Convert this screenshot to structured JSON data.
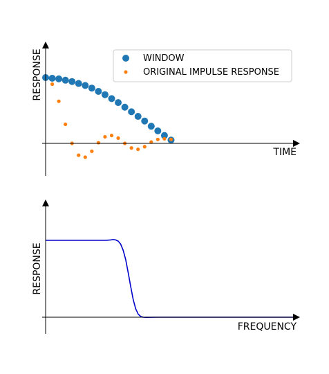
{
  "chart_data": [
    {
      "type": "scatter",
      "xlabel": "TIME",
      "ylabel": "RESPONSE",
      "xlim": [
        -0.5,
        38
      ],
      "ylim": [
        -0.55,
        1.7
      ],
      "legend_position": "top-right",
      "series": [
        {
          "name": "WINDOW",
          "color": "#1f77b4",
          "x": [
            0,
            1,
            2,
            3,
            4,
            5,
            6,
            7,
            8,
            9,
            10,
            11,
            12,
            13,
            14,
            15,
            16,
            17,
            18,
            19
          ],
          "y": [
            1.0,
            0.99,
            0.98,
            0.96,
            0.94,
            0.91,
            0.88,
            0.84,
            0.79,
            0.74,
            0.68,
            0.62,
            0.55,
            0.48,
            0.41,
            0.34,
            0.26,
            0.19,
            0.12,
            0.05
          ]
        },
        {
          "name": "ORIGINAL IMPULSE RESPONSE",
          "color": "#ff7f0e",
          "x": [
            1,
            2,
            3,
            4,
            5,
            6,
            7,
            8,
            9,
            10,
            11,
            12,
            13,
            14,
            15,
            16,
            17,
            18,
            19
          ],
          "y": [
            0.9,
            0.64,
            0.29,
            0.0,
            -0.18,
            -0.21,
            -0.12,
            0.01,
            0.1,
            0.12,
            0.08,
            0.0,
            -0.07,
            -0.09,
            -0.05,
            0.02,
            0.06,
            0.07,
            0.06
          ]
        }
      ]
    },
    {
      "type": "line",
      "xlabel": "FREQUENCY",
      "ylabel": "RESPONSE",
      "xlim": [
        0,
        1
      ],
      "ylim": [
        -0.25,
        1.55
      ],
      "series": [
        {
          "color": "#0000cc",
          "x": [
            0,
            0.05,
            0.1,
            0.15,
            0.2,
            0.24,
            0.26,
            0.27,
            0.28,
            0.29,
            0.3,
            0.31,
            0.32,
            0.33,
            0.34,
            0.35,
            0.36,
            0.37,
            0.38,
            0.39,
            0.4,
            0.45,
            0.5,
            0.6,
            0.7,
            0.8,
            0.9,
            1.0
          ],
          "y": [
            1.0,
            1.0,
            1.0,
            1.0,
            1.0,
            1.0,
            1.005,
            1.01,
            1.005,
            0.99,
            0.95,
            0.87,
            0.75,
            0.58,
            0.4,
            0.23,
            0.11,
            0.04,
            0.01,
            0.0,
            -0.002,
            0.0,
            0.0,
            0.0,
            0.0,
            0.0,
            0.0,
            0.0
          ]
        }
      ]
    }
  ]
}
